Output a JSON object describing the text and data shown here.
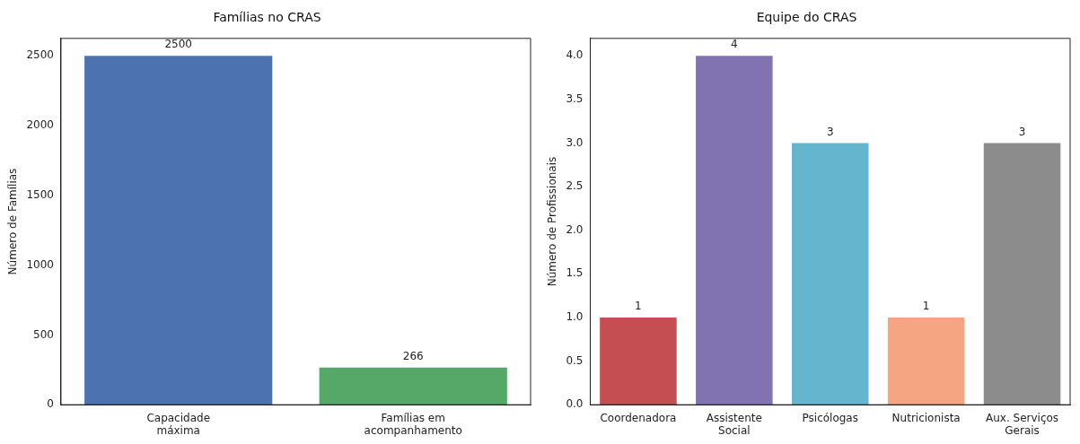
{
  "chart_data": [
    {
      "type": "bar",
      "title": "Famílias no CRAS",
      "ylabel": "Número de Famílias",
      "categories": [
        "Capacidade máxima",
        "Famílias em acompanhamento"
      ],
      "values": [
        2500,
        266
      ],
      "colors": [
        "#4c72b0",
        "#55a868"
      ],
      "ylim": [
        0,
        2625
      ],
      "yticks": [
        0,
        500,
        1000,
        1500,
        2000,
        2500
      ],
      "data_labels": true,
      "grid": false,
      "legend": false
    },
    {
      "type": "bar",
      "title": "Equipe do CRAS",
      "ylabel": "Número de Profissionais",
      "categories": [
        "Coordenadora",
        "Assistente Social",
        "Psicólogas",
        "Nutricionista",
        "Aux. Serviços Gerais"
      ],
      "values": [
        1,
        4,
        3,
        1,
        3
      ],
      "colors": [
        "#c44e52",
        "#8172b2",
        "#64b5cd",
        "#f5a582",
        "#8c8c8c"
      ],
      "ylim": [
        0,
        4.2
      ],
      "yticks": [
        {
          "value": 0,
          "label": "0.0"
        },
        0.5,
        {
          "value": 1,
          "label": "1.0"
        },
        1.5,
        {
          "value": 2,
          "label": "2.0"
        },
        2.5,
        {
          "value": 3,
          "label": "3.0"
        },
        3.5,
        {
          "value": 4,
          "label": "4.0"
        }
      ],
      "data_labels": true,
      "grid": false,
      "legend": false
    }
  ]
}
